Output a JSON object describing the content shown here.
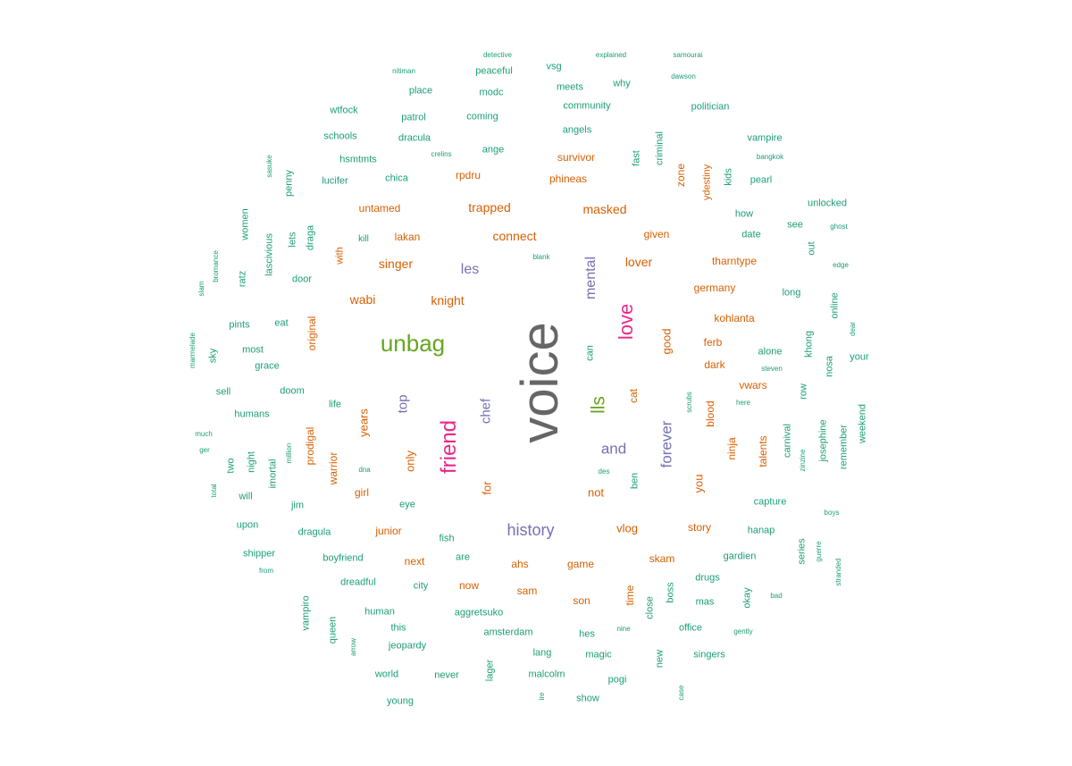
{
  "colors": {
    "teal": "#1b9e77",
    "orange": "#d95f02",
    "purple": "#7570b3",
    "pink": "#e7298a",
    "green": "#66a61e",
    "gray": "#666666"
  },
  "words": [
    {
      "text": "voice",
      "color": "gray",
      "vertical": true
    },
    {
      "text": "unbag",
      "color": "green"
    },
    {
      "text": "friend",
      "color": "pink",
      "vertical": true
    },
    {
      "text": "love",
      "color": "pink",
      "vertical": true
    },
    {
      "text": "lls",
      "color": "green",
      "vertical": true
    },
    {
      "text": "history",
      "color": "purple"
    },
    {
      "text": "forever",
      "color": "purple",
      "vertical": true
    },
    {
      "text": "and",
      "color": "purple"
    },
    {
      "text": "mental",
      "color": "purple",
      "vertical": true
    },
    {
      "text": "les",
      "color": "purple"
    },
    {
      "text": "top",
      "color": "purple",
      "vertical": true
    },
    {
      "text": "chef",
      "color": "purple",
      "vertical": true
    },
    {
      "text": "masked",
      "color": "orange"
    },
    {
      "text": "trapped",
      "color": "orange"
    },
    {
      "text": "connect",
      "color": "orange"
    },
    {
      "text": "singer",
      "color": "orange"
    },
    {
      "text": "wabi",
      "color": "orange"
    },
    {
      "text": "knight",
      "color": "orange"
    },
    {
      "text": "lover",
      "color": "orange"
    },
    {
      "text": "untamed",
      "color": "orange"
    },
    {
      "text": "lakan",
      "color": "orange"
    },
    {
      "text": "phineas",
      "color": "orange"
    },
    {
      "text": "survivor",
      "color": "orange"
    },
    {
      "text": "rpdru",
      "color": "orange"
    },
    {
      "text": "given",
      "color": "orange"
    },
    {
      "text": "tharntype",
      "color": "orange"
    },
    {
      "text": "germany",
      "color": "orange"
    },
    {
      "text": "kohlanta",
      "color": "orange"
    },
    {
      "text": "ferb",
      "color": "orange"
    },
    {
      "text": "dark",
      "color": "orange"
    },
    {
      "text": "vwars",
      "color": "orange"
    },
    {
      "text": "good",
      "color": "orange",
      "vertical": true
    },
    {
      "text": "years",
      "color": "orange",
      "vertical": true
    },
    {
      "text": "only",
      "color": "orange",
      "vertical": true
    },
    {
      "text": "not",
      "color": "orange"
    },
    {
      "text": "you",
      "color": "orange",
      "vertical": true
    },
    {
      "text": "for",
      "color": "orange",
      "vertical": true
    },
    {
      "text": "girl",
      "color": "orange"
    },
    {
      "text": "warrior",
      "color": "orange",
      "vertical": true
    },
    {
      "text": "prodigal",
      "color": "orange",
      "vertical": true
    },
    {
      "text": "original",
      "color": "orange",
      "vertical": true
    },
    {
      "text": "with",
      "color": "orange",
      "vertical": true
    },
    {
      "text": "zone",
      "color": "orange",
      "vertical": true
    },
    {
      "text": "ydestiny",
      "color": "orange",
      "vertical": true
    },
    {
      "text": "junior",
      "color": "orange"
    },
    {
      "text": "vlog",
      "color": "orange"
    },
    {
      "text": "story",
      "color": "orange"
    },
    {
      "text": "skam",
      "color": "orange"
    },
    {
      "text": "ahs",
      "color": "orange"
    },
    {
      "text": "game",
      "color": "orange"
    },
    {
      "text": "next",
      "color": "orange"
    },
    {
      "text": "now",
      "color": "orange"
    },
    {
      "text": "sam",
      "color": "orange"
    },
    {
      "text": "son",
      "color": "orange"
    },
    {
      "text": "time",
      "color": "orange",
      "vertical": true
    },
    {
      "text": "blood",
      "color": "orange",
      "vertical": true
    },
    {
      "text": "ninja",
      "color": "orange",
      "vertical": true
    },
    {
      "text": "talents",
      "color": "orange",
      "vertical": true
    },
    {
      "text": "cat",
      "color": "orange",
      "vertical": true
    },
    {
      "text": "detective",
      "color": "teal"
    },
    {
      "text": "explained",
      "color": "teal"
    },
    {
      "text": "samourai",
      "color": "teal"
    },
    {
      "text": "nitiman",
      "color": "teal"
    },
    {
      "text": "peaceful",
      "color": "teal"
    },
    {
      "text": "vsg",
      "color": "teal"
    },
    {
      "text": "dawson",
      "color": "teal"
    },
    {
      "text": "place",
      "color": "teal"
    },
    {
      "text": "modc",
      "color": "teal"
    },
    {
      "text": "meets",
      "color": "teal"
    },
    {
      "text": "why",
      "color": "teal"
    },
    {
      "text": "wtfock",
      "color": "teal"
    },
    {
      "text": "community",
      "color": "teal"
    },
    {
      "text": "politician",
      "color": "teal"
    },
    {
      "text": "patrol",
      "color": "teal"
    },
    {
      "text": "coming",
      "color": "teal"
    },
    {
      "text": "angels",
      "color": "teal"
    },
    {
      "text": "schools",
      "color": "teal"
    },
    {
      "text": "dracula",
      "color": "teal"
    },
    {
      "text": "vampire",
      "color": "teal"
    },
    {
      "text": "ange",
      "color": "teal"
    },
    {
      "text": "criminal",
      "color": "teal",
      "vertical": true
    },
    {
      "text": "hsmtmts",
      "color": "teal"
    },
    {
      "text": "crelins",
      "color": "teal"
    },
    {
      "text": "fast",
      "color": "teal",
      "vertical": true
    },
    {
      "text": "bangkok",
      "color": "teal"
    },
    {
      "text": "sasuke",
      "color": "teal",
      "vertical": true
    },
    {
      "text": "lucifer",
      "color": "teal"
    },
    {
      "text": "chica",
      "color": "teal"
    },
    {
      "text": "kids",
      "color": "teal",
      "vertical": true
    },
    {
      "text": "pearl",
      "color": "teal"
    },
    {
      "text": "penny",
      "color": "teal",
      "vertical": true
    },
    {
      "text": "unlocked",
      "color": "teal"
    },
    {
      "text": "how",
      "color": "teal"
    },
    {
      "text": "women",
      "color": "teal",
      "vertical": true
    },
    {
      "text": "see",
      "color": "teal"
    },
    {
      "text": "ghost",
      "color": "teal"
    },
    {
      "text": "draga",
      "color": "teal",
      "vertical": true
    },
    {
      "text": "date",
      "color": "teal"
    },
    {
      "text": "lets",
      "color": "teal",
      "vertical": true
    },
    {
      "text": "kill",
      "color": "teal"
    },
    {
      "text": "lascivious",
      "color": "teal",
      "vertical": true
    },
    {
      "text": "out",
      "color": "teal",
      "vertical": true
    },
    {
      "text": "blank",
      "color": "teal"
    },
    {
      "text": "bromance",
      "color": "teal",
      "vertical": true
    },
    {
      "text": "edge",
      "color": "teal"
    },
    {
      "text": "ratz",
      "color": "teal",
      "vertical": true
    },
    {
      "text": "door",
      "color": "teal"
    },
    {
      "text": "slam",
      "color": "teal",
      "vertical": true
    },
    {
      "text": "long",
      "color": "teal"
    },
    {
      "text": "online",
      "color": "teal",
      "vertical": true
    },
    {
      "text": "pints",
      "color": "teal"
    },
    {
      "text": "eat",
      "color": "teal"
    },
    {
      "text": "dear",
      "color": "teal",
      "vertical": true
    },
    {
      "text": "marmelade",
      "color": "teal",
      "vertical": true
    },
    {
      "text": "sky",
      "color": "teal",
      "vertical": true
    },
    {
      "text": "most",
      "color": "teal"
    },
    {
      "text": "khong",
      "color": "teal",
      "vertical": true
    },
    {
      "text": "alone",
      "color": "teal"
    },
    {
      "text": "your",
      "color": "teal"
    },
    {
      "text": "can",
      "color": "teal",
      "vertical": true
    },
    {
      "text": "grace",
      "color": "teal"
    },
    {
      "text": "nosa",
      "color": "teal",
      "vertical": true
    },
    {
      "text": "steven",
      "color": "teal"
    },
    {
      "text": "sell",
      "color": "teal"
    },
    {
      "text": "doom",
      "color": "teal"
    },
    {
      "text": "row",
      "color": "teal",
      "vertical": true
    },
    {
      "text": "scrubs",
      "color": "teal",
      "vertical": true
    },
    {
      "text": "here",
      "color": "teal"
    },
    {
      "text": "life",
      "color": "teal"
    },
    {
      "text": "humans",
      "color": "teal"
    },
    {
      "text": "weekend",
      "color": "teal",
      "vertical": true
    },
    {
      "text": "much",
      "color": "teal"
    },
    {
      "text": "carnival",
      "color": "teal",
      "vertical": true
    },
    {
      "text": "josephine",
      "color": "teal",
      "vertical": true
    },
    {
      "text": "ger",
      "color": "teal"
    },
    {
      "text": "million",
      "color": "teal",
      "vertical": true
    },
    {
      "text": "remember",
      "color": "teal",
      "vertical": true
    },
    {
      "text": "two",
      "color": "teal",
      "vertical": true
    },
    {
      "text": "night",
      "color": "teal",
      "vertical": true
    },
    {
      "text": "imortal",
      "color": "teal",
      "vertical": true
    },
    {
      "text": "dna",
      "color": "teal"
    },
    {
      "text": "des",
      "color": "teal"
    },
    {
      "text": "zinzine",
      "color": "teal",
      "vertical": true
    },
    {
      "text": "ben",
      "color": "teal",
      "vertical": true
    },
    {
      "text": "total",
      "color": "teal",
      "vertical": true
    },
    {
      "text": "will",
      "color": "teal"
    },
    {
      "text": "jim",
      "color": "teal"
    },
    {
      "text": "eye",
      "color": "teal"
    },
    {
      "text": "capture",
      "color": "teal"
    },
    {
      "text": "boys",
      "color": "teal"
    },
    {
      "text": "upon",
      "color": "teal"
    },
    {
      "text": "dragula",
      "color": "teal"
    },
    {
      "text": "hanap",
      "color": "teal"
    },
    {
      "text": "fish",
      "color": "teal"
    },
    {
      "text": "shipper",
      "color": "teal"
    },
    {
      "text": "series",
      "color": "teal",
      "vertical": true
    },
    {
      "text": "guerre",
      "color": "teal",
      "vertical": true
    },
    {
      "text": "boyfriend",
      "color": "teal"
    },
    {
      "text": "are",
      "color": "teal"
    },
    {
      "text": "gardien",
      "color": "teal"
    },
    {
      "text": "from",
      "color": "teal"
    },
    {
      "text": "stranded",
      "color": "teal",
      "vertical": true
    },
    {
      "text": "drugs",
      "color": "teal"
    },
    {
      "text": "dreadful",
      "color": "teal"
    },
    {
      "text": "city",
      "color": "teal"
    },
    {
      "text": "boss",
      "color": "teal",
      "vertical": true
    },
    {
      "text": "bad",
      "color": "teal"
    },
    {
      "text": "mas",
      "color": "teal"
    },
    {
      "text": "okay",
      "color": "teal",
      "vertical": true
    },
    {
      "text": "close",
      "color": "teal",
      "vertical": true
    },
    {
      "text": "vampiro",
      "color": "teal",
      "vertical": true
    },
    {
      "text": "human",
      "color": "teal"
    },
    {
      "text": "aggretsuko",
      "color": "teal"
    },
    {
      "text": "queen",
      "color": "teal",
      "vertical": true
    },
    {
      "text": "this",
      "color": "teal"
    },
    {
      "text": "office",
      "color": "teal"
    },
    {
      "text": "amsterdam",
      "color": "teal"
    },
    {
      "text": "hes",
      "color": "teal"
    },
    {
      "text": "nine",
      "color": "teal"
    },
    {
      "text": "gently",
      "color": "teal"
    },
    {
      "text": "arrow",
      "color": "teal",
      "vertical": true
    },
    {
      "text": "jeopardy",
      "color": "teal"
    },
    {
      "text": "lang",
      "color": "teal"
    },
    {
      "text": "magic",
      "color": "teal"
    },
    {
      "text": "singers",
      "color": "teal"
    },
    {
      "text": "new",
      "color": "teal",
      "vertical": true
    },
    {
      "text": "lager",
      "color": "teal",
      "vertical": true
    },
    {
      "text": "world",
      "color": "teal"
    },
    {
      "text": "never",
      "color": "teal"
    },
    {
      "text": "malcolm",
      "color": "teal"
    },
    {
      "text": "pogi",
      "color": "teal"
    },
    {
      "text": "young",
      "color": "teal"
    },
    {
      "text": "show",
      "color": "teal"
    },
    {
      "text": "ire",
      "color": "teal",
      "vertical": true
    },
    {
      "text": "case",
      "color": "teal",
      "vertical": true
    }
  ]
}
